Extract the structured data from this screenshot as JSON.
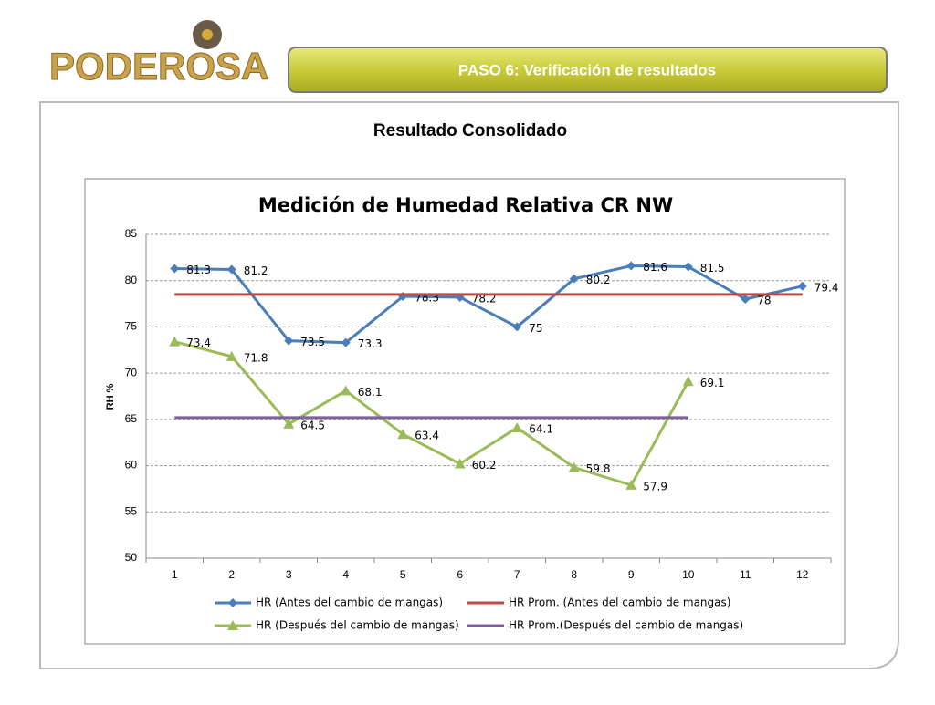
{
  "header": {
    "logo": "PODEROSA",
    "banner": "PASO 6: Verificación de resultados",
    "heading": "Resultado Consolidado"
  },
  "chart_data": {
    "type": "line",
    "title": "Medición de Humedad Relativa CR NW",
    "y_label": "RH %",
    "categories": [
      "1",
      "2",
      "3",
      "4",
      "5",
      "6",
      "7",
      "8",
      "9",
      "10",
      "11",
      "12"
    ],
    "ylim": [
      50,
      85
    ],
    "yticks": [
      50,
      55,
      60,
      65,
      70,
      75,
      80,
      85
    ],
    "grid": true,
    "legend": "bottom",
    "series": [
      {
        "name": "HR (Antes del cambio de mangas)",
        "color": "#4a7ebb",
        "marker": "diamond",
        "labels": true,
        "values": [
          81.3,
          81.2,
          73.5,
          73.3,
          78.3,
          78.2,
          75,
          80.2,
          81.6,
          81.5,
          78,
          79.4
        ]
      },
      {
        "name": "HR Prom. (Antes del cambio de mangas)",
        "color": "#be4b48",
        "marker": "none",
        "labels": false,
        "values": [
          78.5,
          78.5,
          78.5,
          78.5,
          78.5,
          78.5,
          78.5,
          78.5,
          78.5,
          78.5,
          78.5,
          78.5
        ]
      },
      {
        "name": "HR (Después del cambio de mangas)",
        "color": "#9bbb59",
        "marker": "triangle",
        "labels": true,
        "values": [
          73.4,
          71.8,
          64.5,
          68.1,
          63.4,
          60.2,
          64.1,
          59.8,
          57.9,
          69.1,
          null,
          null
        ]
      },
      {
        "name": "HR Prom.(Después del cambio de mangas)",
        "color": "#7d60a0",
        "marker": "none",
        "labels": false,
        "values": [
          65.2,
          65.2,
          65.2,
          65.2,
          65.2,
          65.2,
          65.2,
          65.2,
          65.2,
          65.2,
          null,
          null
        ]
      }
    ]
  }
}
